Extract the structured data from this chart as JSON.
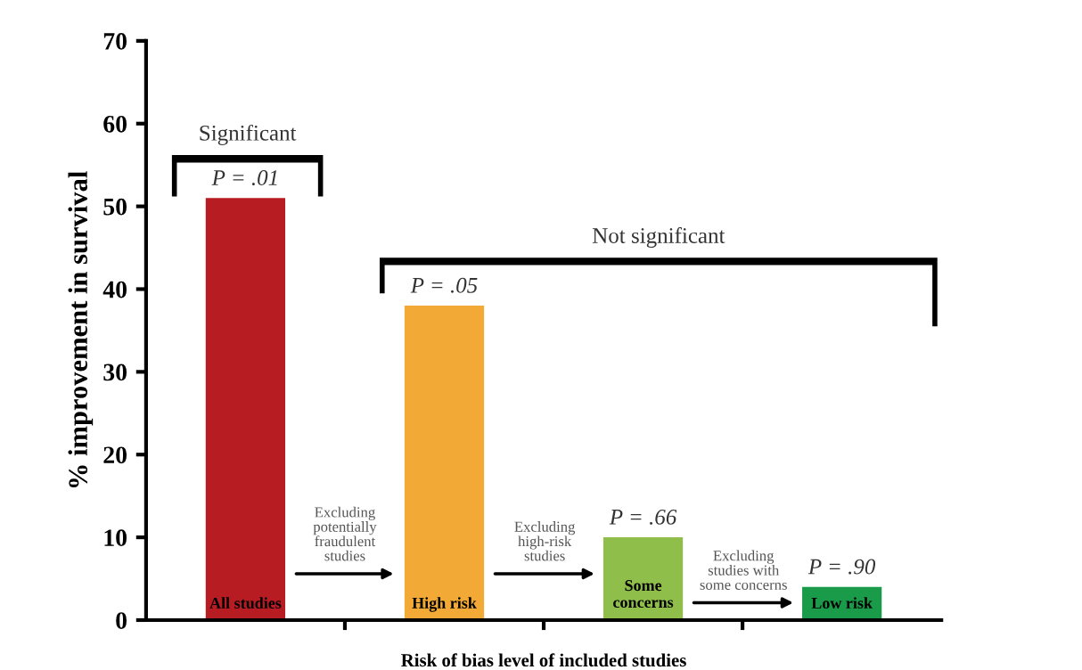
{
  "chart_data": {
    "type": "bar",
    "categories": [
      "All studies",
      "High risk",
      "Some concerns",
      "Low risk"
    ],
    "values": [
      51,
      38,
      10,
      4
    ],
    "colors": [
      "#b71c23",
      "#f3a935",
      "#8fbf4a",
      "#1a9b4a"
    ],
    "ylabel": "% improvement in survival",
    "xlabel": "Risk of bias level of included studies",
    "ylim": [
      0,
      70
    ],
    "yticks": [
      0,
      10,
      20,
      30,
      40,
      50,
      60,
      70
    ],
    "annotations": [
      "Significant",
      "Not significant",
      "Excluding\npotentially\nfraudulent\nstudies",
      "Excluding\nhigh-risk\nstudies",
      "Excluding\nstudies with\nsome concerns",
      {
        "text": "P = .01",
        "x": "All studies",
        "y": 51
      },
      {
        "text": "P = .05",
        "x": "High risk",
        "y": 38
      },
      {
        "text": "P = .66",
        "x": "Some concerns",
        "y": 10
      },
      {
        "text": "P = .90",
        "x": "Low risk",
        "y": 4
      }
    ],
    "grid": false,
    "legend": false
  }
}
